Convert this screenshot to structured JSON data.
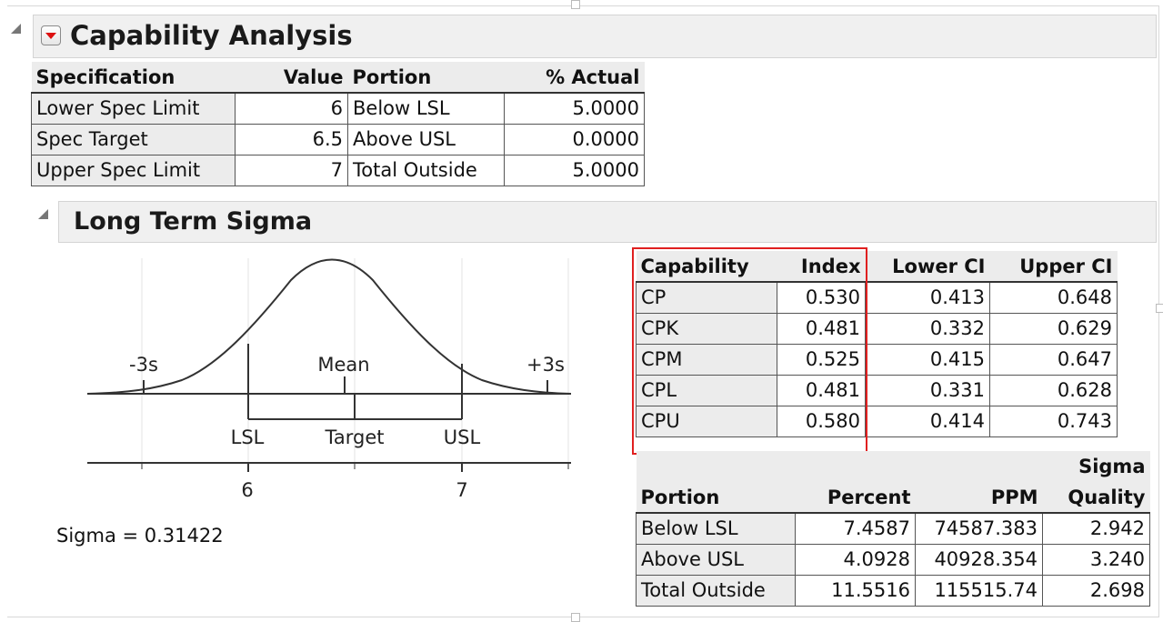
{
  "header": {
    "title": "Capability Analysis"
  },
  "spec_table": {
    "columns": [
      "Specification",
      "Value",
      "Portion",
      "% Actual"
    ],
    "rows": [
      [
        "Lower Spec Limit",
        "6",
        "Below LSL",
        "5.0000"
      ],
      [
        "Spec Target",
        "6.5",
        "Above USL",
        "0.0000"
      ],
      [
        "Upper Spec Limit",
        "7",
        "Total Outside",
        "5.0000"
      ]
    ]
  },
  "section": {
    "title": "Long Term Sigma"
  },
  "plot": {
    "labels": {
      "minus3s": "-3s",
      "mean": "Mean",
      "plus3s": "+3s",
      "lsl": "LSL",
      "target": "Target",
      "usl": "USL"
    },
    "ticks": [
      "6",
      "7"
    ],
    "sigma_text": "Sigma = 0.31422"
  },
  "cap_table": {
    "columns": [
      "Capability",
      "Index",
      "Lower CI",
      "Upper CI"
    ],
    "rows": [
      [
        "CP",
        "0.530",
        "0.413",
        "0.648"
      ],
      [
        "CPK",
        "0.481",
        "0.332",
        "0.629"
      ],
      [
        "CPM",
        "0.525",
        "0.415",
        "0.647"
      ],
      [
        "CPL",
        "0.481",
        "0.331",
        "0.628"
      ],
      [
        "CPU",
        "0.580",
        "0.414",
        "0.743"
      ]
    ]
  },
  "portion_table": {
    "sigma_top": "Sigma",
    "columns": [
      "Portion",
      "Percent",
      "PPM",
      "Quality"
    ],
    "rows": [
      [
        "Below LSL",
        "7.4587",
        "74587.383",
        "2.942"
      ],
      [
        "Above USL",
        "4.0928",
        "40928.354",
        "3.240"
      ],
      [
        "Total Outside",
        "11.5516",
        "115515.74",
        "2.698"
      ]
    ]
  },
  "colors": {
    "highlight_box": "#e02020",
    "disclosure_button": "#d11111"
  }
}
